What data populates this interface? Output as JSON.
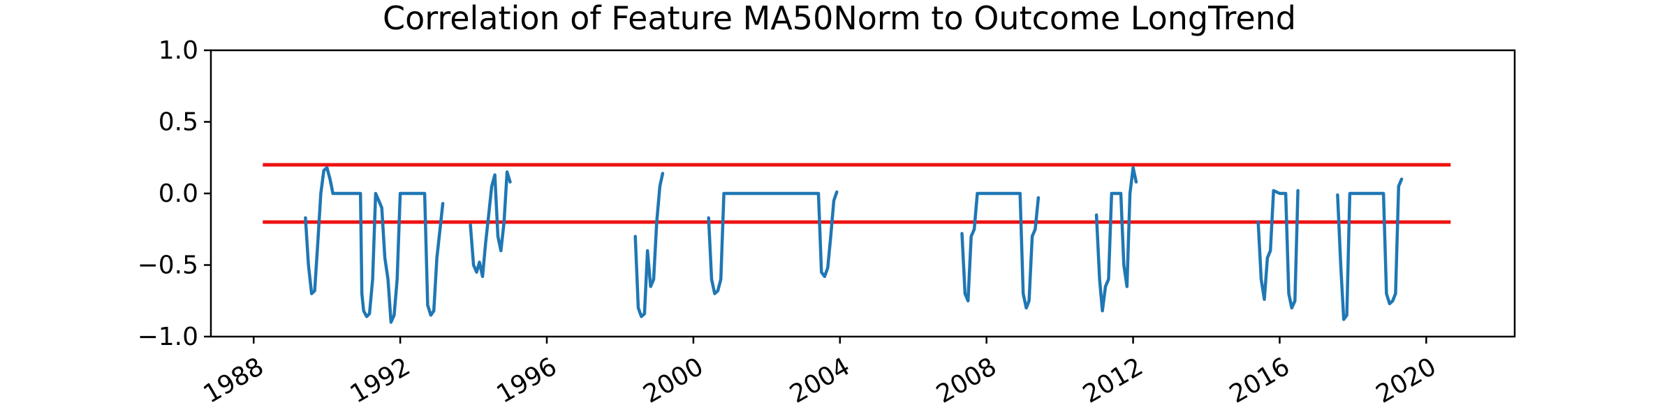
{
  "chart_data": {
    "type": "line",
    "title": "Correlation of Feature MA50Norm to Outcome LongTrend",
    "xlabel": "",
    "ylabel": "",
    "x_axis_type": "date",
    "xlim": [
      "1986-11-01",
      "2022-06-01"
    ],
    "ylim": [
      -1.0,
      1.0
    ],
    "x_ticks": [
      "1988",
      "1992",
      "1996",
      "2000",
      "2004",
      "2008",
      "2012",
      "2016",
      "2020"
    ],
    "y_ticks": [
      "1.0",
      "0.5",
      "0.0",
      "−0.5",
      "−1.0"
    ],
    "x_tick_rotation_deg": 30,
    "grid": false,
    "legend": "none",
    "colors": {
      "series": "#1f77b4",
      "threshold": "#ee1111",
      "axes": "#000000"
    },
    "thresholds": [
      {
        "y": 0.2,
        "x_start": "1988-04-01",
        "x_end": "2020-09-01"
      },
      {
        "y": -0.2,
        "x_start": "1988-04-01",
        "x_end": "2020-09-01"
      }
    ],
    "series": [
      {
        "segments": [
          [
            [
              "1989-06-01",
              -0.17
            ],
            [
              "1989-07-01",
              -0.5
            ],
            [
              "1989-08-01",
              -0.7
            ],
            [
              "1989-09-01",
              -0.68
            ],
            [
              "1989-10-01",
              -0.35
            ],
            [
              "1989-11-01",
              0.0
            ],
            [
              "1989-12-01",
              0.16
            ],
            [
              "1990-01-01",
              0.18
            ],
            [
              "1990-02-01",
              0.1
            ],
            [
              "1990-03-01",
              0.0
            ],
            [
              "1990-06-01",
              0.0
            ],
            [
              "1990-09-01",
              0.0
            ],
            [
              "1990-12-01",
              0.0
            ],
            [
              "1990-12-15",
              -0.7
            ],
            [
              "1991-01-01",
              -0.82
            ],
            [
              "1991-02-01",
              -0.86
            ],
            [
              "1991-03-01",
              -0.84
            ],
            [
              "1991-04-01",
              -0.6
            ],
            [
              "1991-05-01",
              0.0
            ],
            [
              "1991-06-01",
              -0.05
            ],
            [
              "1991-07-01",
              -0.1
            ],
            [
              "1991-08-01",
              -0.45
            ],
            [
              "1991-09-01",
              -0.6
            ],
            [
              "1991-10-01",
              -0.9
            ],
            [
              "1991-11-01",
              -0.85
            ],
            [
              "1991-12-01",
              -0.6
            ],
            [
              "1992-01-01",
              0.0
            ],
            [
              "1992-06-01",
              0.0
            ],
            [
              "1992-09-01",
              0.0
            ],
            [
              "1992-10-01",
              -0.78
            ],
            [
              "1992-11-01",
              -0.85
            ],
            [
              "1992-12-01",
              -0.82
            ],
            [
              "1993-01-01",
              -0.45
            ],
            [
              "1993-02-01",
              -0.25
            ],
            [
              "1993-03-01",
              -0.07
            ]
          ],
          [
            [
              "1993-12-01",
              -0.22
            ],
            [
              "1994-01-01",
              -0.5
            ],
            [
              "1994-02-01",
              -0.55
            ],
            [
              "1994-03-01",
              -0.48
            ],
            [
              "1994-04-01",
              -0.58
            ],
            [
              "1994-05-01",
              -0.35
            ],
            [
              "1994-06-01",
              -0.15
            ],
            [
              "1994-07-01",
              0.05
            ],
            [
              "1994-08-01",
              0.13
            ],
            [
              "1994-09-01",
              -0.3
            ],
            [
              "1994-10-01",
              -0.4
            ],
            [
              "1994-11-01",
              -0.2
            ],
            [
              "1994-12-01",
              0.15
            ],
            [
              "1995-01-01",
              0.08
            ]
          ],
          [
            [
              "1998-06-01",
              -0.3
            ],
            [
              "1998-07-01",
              -0.8
            ],
            [
              "1998-08-01",
              -0.86
            ],
            [
              "1998-09-01",
              -0.84
            ],
            [
              "1998-10-01",
              -0.4
            ],
            [
              "1998-11-01",
              -0.65
            ],
            [
              "1998-12-01",
              -0.6
            ],
            [
              "1999-01-01",
              -0.2
            ],
            [
              "1999-02-01",
              0.05
            ],
            [
              "1999-03-01",
              0.14
            ]
          ],
          [
            [
              "2000-06-01",
              -0.17
            ],
            [
              "2000-07-01",
              -0.6
            ],
            [
              "2000-08-01",
              -0.7
            ],
            [
              "2000-09-01",
              -0.68
            ],
            [
              "2000-10-01",
              -0.6
            ],
            [
              "2000-11-01",
              0.0
            ],
            [
              "2001-06-01",
              0.0
            ],
            [
              "2002-06-01",
              0.0
            ],
            [
              "2003-06-01",
              0.0
            ],
            [
              "2003-07-01",
              -0.55
            ],
            [
              "2003-08-01",
              -0.58
            ],
            [
              "2003-09-01",
              -0.52
            ],
            [
              "2003-10-01",
              -0.3
            ],
            [
              "2003-11-01",
              -0.05
            ],
            [
              "2003-12-01",
              0.01
            ]
          ],
          [
            [
              "2007-05-01",
              -0.28
            ],
            [
              "2007-06-01",
              -0.7
            ],
            [
              "2007-07-01",
              -0.75
            ],
            [
              "2007-08-01",
              -0.3
            ],
            [
              "2007-09-01",
              -0.25
            ],
            [
              "2007-10-01",
              0.0
            ],
            [
              "2008-06-01",
              0.0
            ],
            [
              "2008-12-01",
              0.0
            ],
            [
              "2009-01-01",
              -0.7
            ],
            [
              "2009-02-01",
              -0.8
            ],
            [
              "2009-03-01",
              -0.75
            ],
            [
              "2009-04-01",
              -0.3
            ],
            [
              "2009-05-01",
              -0.25
            ],
            [
              "2009-06-01",
              -0.03
            ]
          ],
          [
            [
              "2011-01-01",
              -0.15
            ],
            [
              "2011-02-01",
              -0.6
            ],
            [
              "2011-03-01",
              -0.82
            ],
            [
              "2011-04-01",
              -0.65
            ],
            [
              "2011-05-01",
              -0.6
            ],
            [
              "2011-06-01",
              0.0
            ],
            [
              "2011-09-01",
              0.0
            ],
            [
              "2011-10-01",
              -0.5
            ],
            [
              "2011-11-01",
              -0.65
            ],
            [
              "2011-12-01",
              0.0
            ],
            [
              "2012-01-01",
              0.18
            ],
            [
              "2012-02-01",
              0.08
            ]
          ],
          [
            [
              "2015-06-01",
              -0.2
            ],
            [
              "2015-07-01",
              -0.6
            ],
            [
              "2015-08-01",
              -0.74
            ],
            [
              "2015-09-01",
              -0.45
            ],
            [
              "2015-10-01",
              -0.4
            ],
            [
              "2015-11-01",
              0.02
            ],
            [
              "2016-01-01",
              0.0
            ],
            [
              "2016-03-01",
              0.0
            ],
            [
              "2016-04-01",
              -0.7
            ],
            [
              "2016-05-01",
              -0.8
            ],
            [
              "2016-06-01",
              -0.75
            ],
            [
              "2016-07-01",
              0.02
            ]
          ],
          [
            [
              "2017-08-01",
              -0.01
            ],
            [
              "2017-09-01",
              -0.5
            ],
            [
              "2017-10-01",
              -0.88
            ],
            [
              "2017-11-01",
              -0.85
            ],
            [
              "2017-12-01",
              0.0
            ],
            [
              "2018-06-01",
              0.0
            ],
            [
              "2018-11-01",
              0.0
            ],
            [
              "2018-12-01",
              -0.7
            ],
            [
              "2019-01-01",
              -0.77
            ],
            [
              "2019-02-01",
              -0.75
            ],
            [
              "2019-03-01",
              -0.7
            ],
            [
              "2019-04-01",
              0.05
            ],
            [
              "2019-05-01",
              0.1
            ]
          ]
        ]
      }
    ]
  }
}
